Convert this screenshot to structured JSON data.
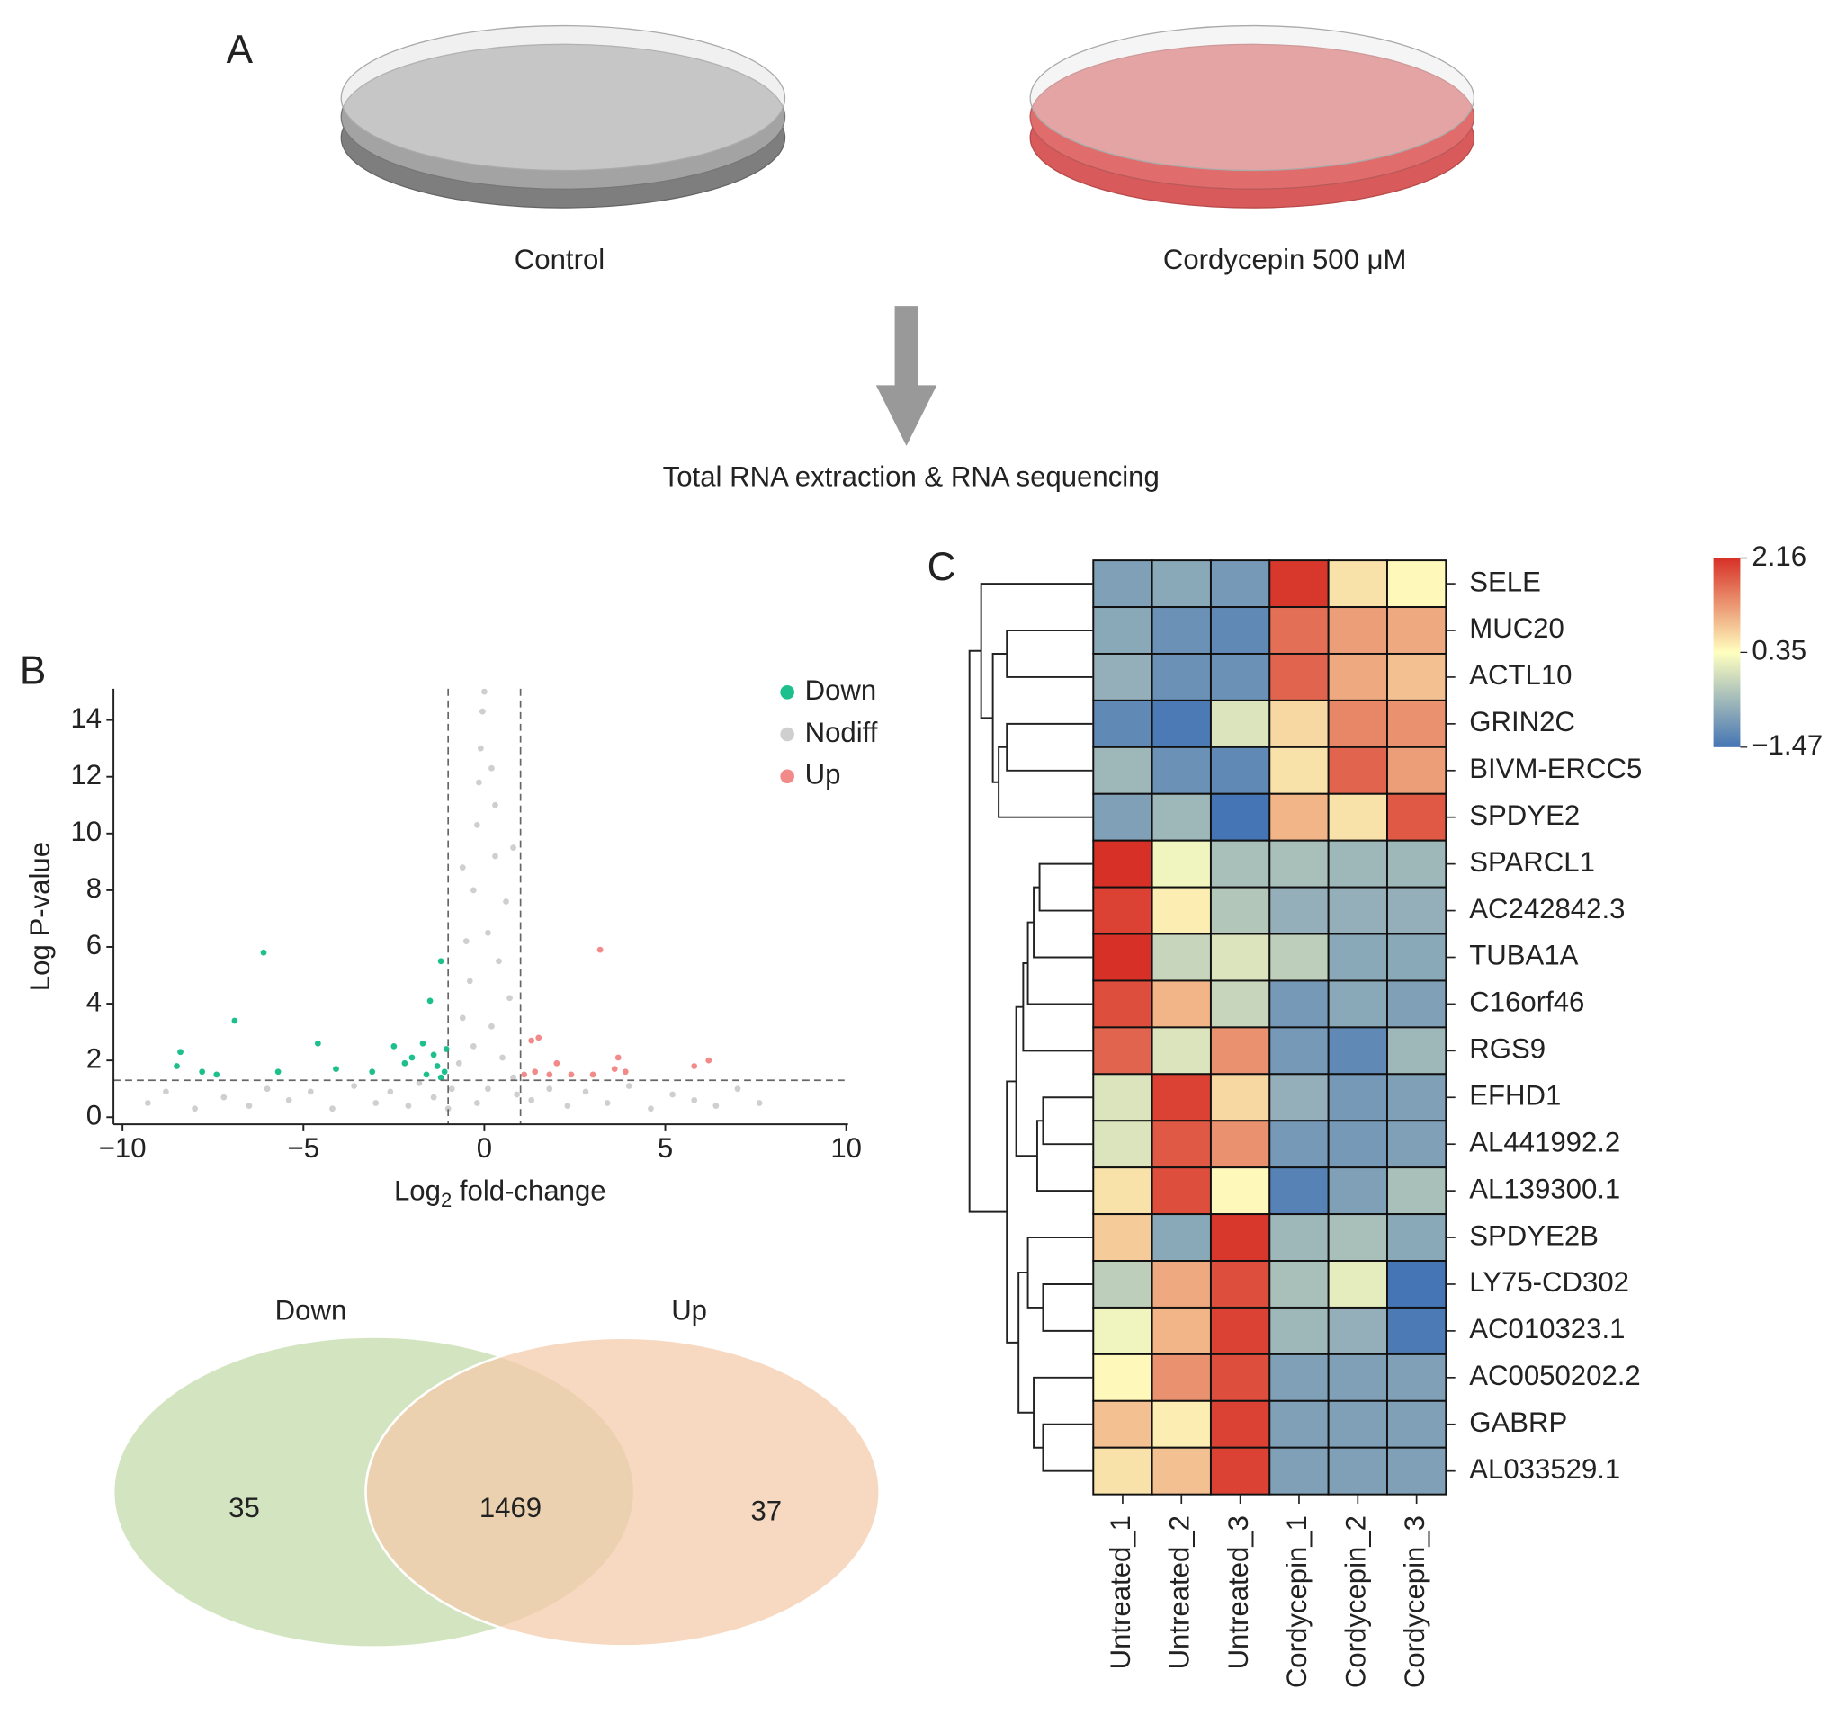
{
  "panel_labels": [
    "A",
    "B",
    "C"
  ],
  "schematic": {
    "dishes": [
      "Control",
      "Cordycepin 500 μM"
    ],
    "step": "Total RNA extraction & RNA sequencing"
  },
  "volcano": {
    "type": "scatter",
    "x_label": [
      "Log",
      "2",
      " fold-change"
    ],
    "y_label": "Log P-value",
    "xlim": [
      -10.25,
      10.05
    ],
    "ylim": [
      -0.25,
      15.1
    ],
    "xticks": [
      {
        "value": -10,
        "label": "−10"
      },
      {
        "value": -5,
        "label": "−5"
      },
      0,
      5,
      10
    ],
    "yticks": [
      0,
      2,
      4,
      6,
      8,
      10,
      12,
      14
    ],
    "x_cutoffs": [
      -1,
      1
    ],
    "y_cutoff": 1.3,
    "legend": "upper right",
    "series": [
      {
        "name": "Down",
        "color": "#1dbf8c",
        "x": [
          -8.4,
          -8.5,
          -7.8,
          -7.4,
          -6.9,
          -6.1,
          -5.7,
          -4.6,
          -4.1,
          -3.1,
          -2.5,
          -2.2,
          -2.0,
          -1.7,
          -1.5,
          -1.4,
          -1.3,
          -1.2,
          -1.1,
          -1.05,
          -1.2,
          -1.6
        ],
        "values": [
          2.3,
          1.8,
          1.6,
          1.5,
          3.4,
          5.8,
          1.6,
          2.6,
          1.7,
          1.6,
          2.5,
          1.9,
          2.1,
          2.6,
          4.1,
          2.2,
          1.8,
          5.5,
          1.6,
          2.4,
          1.4,
          1.5
        ]
      },
      {
        "name": "Nodiff",
        "color": "#cfcfcf",
        "x": [
          -9.3,
          -8.8,
          -8.0,
          -7.2,
          -6.5,
          -6.0,
          -5.4,
          -4.8,
          -4.2,
          -3.6,
          -3.0,
          -2.6,
          -2.1,
          -1.8,
          -1.4,
          -1.0,
          -0.7,
          -0.6,
          -0.5,
          -0.4,
          -0.3,
          -0.2,
          -0.15,
          -0.1,
          -0.05,
          0.0,
          -0.3,
          0.1,
          0.2,
          0.3,
          0.4,
          0.5,
          0.6,
          0.7,
          0.8,
          0.9,
          0.2,
          0.1,
          -0.2,
          1.3,
          1.8,
          2.3,
          2.8,
          3.4,
          4.0,
          4.6,
          5.2,
          5.8,
          6.4,
          7.0,
          7.6,
          -0.9,
          0.8,
          -0.6,
          0.3
        ],
        "values": [
          0.5,
          0.9,
          0.3,
          0.7,
          0.4,
          1.0,
          0.6,
          0.9,
          0.3,
          1.1,
          0.5,
          0.9,
          0.4,
          1.2,
          0.7,
          0.3,
          1.9,
          3.5,
          6.2,
          4.8,
          8.0,
          10.3,
          11.8,
          13.0,
          14.3,
          15.0,
          2.5,
          6.5,
          3.2,
          9.2,
          5.5,
          2.1,
          7.6,
          4.2,
          1.4,
          0.8,
          12.3,
          1.0,
          0.5,
          0.6,
          1.0,
          0.4,
          0.9,
          0.5,
          1.1,
          0.3,
          0.8,
          0.6,
          0.4,
          1.0,
          0.5,
          1.0,
          9.5,
          8.8,
          11.0
        ]
      },
      {
        "name": "Up",
        "color": "#f28a8a",
        "x": [
          1.3,
          1.5,
          1.4,
          1.8,
          2.0,
          2.4,
          3.0,
          3.2,
          3.6,
          3.7,
          3.9,
          5.8,
          6.2,
          1.1
        ],
        "values": [
          2.7,
          2.8,
          1.6,
          1.5,
          1.9,
          1.5,
          1.5,
          5.9,
          1.7,
          2.1,
          1.6,
          1.8,
          2.0,
          1.5
        ]
      }
    ]
  },
  "venn": {
    "sets": [
      {
        "name": "Down",
        "color": "#d3e5c0",
        "value": 35
      },
      {
        "name": "Up",
        "color": "#f4c9a8",
        "value": 37
      }
    ],
    "intersection": 1469
  },
  "heatmap": {
    "type": "heatmap",
    "rows": [
      "SELE",
      "MUC20",
      "ACTL10",
      "GRIN2C",
      "BIVM-ERCC5",
      "SPDYE2",
      "SPARCL1",
      "AC242842.3",
      "TUBA1A",
      "C16orf46",
      "RGS9",
      "EFHD1",
      "AL441992.2",
      "AL139300.1",
      "SPDYE2B",
      "LY75-CD302",
      "AC010323.1",
      "AC0050202.2",
      "GABRP",
      "AL033529.1"
    ],
    "columns": [
      "Untreated_1",
      "Untreated_2",
      "Untreated_3",
      "Cordycepin_1",
      "Cordycepin_2",
      "Cordycepin_3"
    ],
    "values": [
      [
        -0.9,
        -0.8,
        -1.0,
        2.1,
        0.6,
        0.4
      ],
      [
        -0.8,
        -1.1,
        -1.2,
        1.6,
        1.2,
        1.1
      ],
      [
        -0.7,
        -1.1,
        -1.1,
        1.7,
        1.1,
        0.9
      ],
      [
        -1.2,
        -1.4,
        0.0,
        0.7,
        1.4,
        1.3
      ],
      [
        -0.6,
        -1.1,
        -1.2,
        0.6,
        1.7,
        1.2
      ],
      [
        -0.9,
        -0.6,
        -1.47,
        1.0,
        0.6,
        1.8
      ],
      [
        2.16,
        0.2,
        -0.5,
        -0.5,
        -0.6,
        -0.6
      ],
      [
        2.0,
        0.5,
        -0.4,
        -0.7,
        -0.7,
        -0.7
      ],
      [
        2.16,
        -0.2,
        0.0,
        -0.3,
        -0.8,
        -0.8
      ],
      [
        1.9,
        1.0,
        -0.2,
        -1.0,
        -0.8,
        -0.9
      ],
      [
        1.7,
        0.0,
        1.3,
        -1.0,
        -1.2,
        -0.6
      ],
      [
        0.0,
        2.0,
        0.7,
        -0.7,
        -1.0,
        -0.9
      ],
      [
        0.0,
        1.8,
        1.3,
        -1.0,
        -1.0,
        -0.9
      ],
      [
        0.6,
        1.9,
        0.4,
        -1.3,
        -0.9,
        -0.5
      ],
      [
        0.8,
        -0.8,
        2.1,
        -0.6,
        -0.5,
        -0.8
      ],
      [
        -0.3,
        1.1,
        1.9,
        -0.5,
        0.1,
        -1.47
      ],
      [
        0.2,
        1.0,
        2.0,
        -0.6,
        -0.7,
        -1.4
      ],
      [
        0.4,
        1.3,
        1.9,
        -0.9,
        -0.9,
        -0.9
      ],
      [
        0.9,
        0.5,
        2.0,
        -0.9,
        -0.9,
        -0.9
      ],
      [
        0.6,
        0.9,
        2.0,
        -0.9,
        -0.9,
        -0.9
      ]
    ],
    "colorbar": {
      "lim": [
        -1.47,
        2.16
      ],
      "colors": [
        "#4575b4",
        "#ffffbf",
        "#d73027"
      ],
      "ticks": [
        2.16,
        0.35,
        {
          "value": -1.47,
          "label": "−1.47"
        }
      ]
    }
  }
}
